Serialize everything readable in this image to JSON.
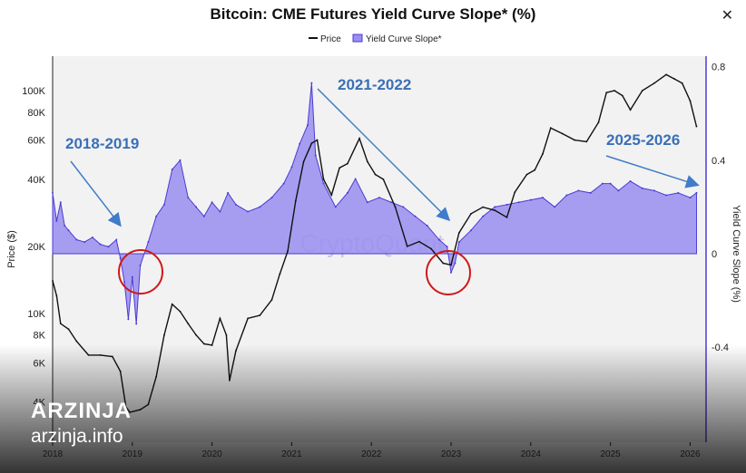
{
  "window": {
    "close_glyph": "✕"
  },
  "colors": {
    "price": "#111111",
    "slope_fill": "#9a8ef0",
    "slope_line": "#4b3bd4",
    "arrow": "#3f7cc9",
    "annotation_text": "#3a6fb8",
    "circle": "#d01818",
    "plot_bg": "#f2f2f2"
  },
  "watermark": {
    "brand": "ARZINJA",
    "url": "arzinja.info",
    "center_text": "CryptoQuant"
  },
  "chart_data": {
    "type": "line",
    "title": "Bitcoin: CME Futures Yield Curve Slope* (%)",
    "legend": [
      {
        "name": "Price",
        "style": "line"
      },
      {
        "name": "Yield Curve Slope*",
        "style": "area"
      }
    ],
    "legend_position": "top-center",
    "x_ticks": [
      "2018",
      "2019",
      "2020",
      "2021",
      "2022",
      "2023",
      "2024",
      "2025",
      "2026"
    ],
    "y_left": {
      "label": "Price ($)",
      "scale": "log",
      "ticks": [
        {
          "v": 4000,
          "t": "4K"
        },
        {
          "v": 6000,
          "t": "6K"
        },
        {
          "v": 8000,
          "t": "8K"
        },
        {
          "v": 10000,
          "t": "10K"
        },
        {
          "v": 20000,
          "t": "20K"
        },
        {
          "v": 40000,
          "t": "40K"
        },
        {
          "v": 60000,
          "t": "60K"
        },
        {
          "v": 80000,
          "t": "80K"
        },
        {
          "v": 100000,
          "t": "100K"
        }
      ]
    },
    "y_right": {
      "label": "Yield Curve Slope (%)",
      "ticks": [
        {
          "v": 0.8,
          "t": "0.8"
        },
        {
          "v": 0.4,
          "t": "0.4"
        },
        {
          "v": 0,
          "t": "0"
        },
        {
          "v": -0.4,
          "t": "-0.4"
        }
      ]
    },
    "series": [
      {
        "name": "Price",
        "x": [
          2018.0,
          2018.05,
          2018.1,
          2018.2,
          2018.3,
          2018.45,
          2018.6,
          2018.75,
          2018.85,
          2018.92,
          2018.97,
          2019.1,
          2019.2,
          2019.3,
          2019.4,
          2019.5,
          2019.6,
          2019.7,
          2019.8,
          2019.9,
          2020.0,
          2020.1,
          2020.18,
          2020.22,
          2020.3,
          2020.45,
          2020.6,
          2020.75,
          2020.85,
          2020.95,
          2021.05,
          2021.15,
          2021.25,
          2021.32,
          2021.4,
          2021.5,
          2021.6,
          2021.7,
          2021.85,
          2021.95,
          2022.05,
          2022.15,
          2022.3,
          2022.45,
          2022.6,
          2022.75,
          2022.9,
          2023.0,
          2023.1,
          2023.25,
          2023.4,
          2023.55,
          2023.7,
          2023.8,
          2023.95,
          2024.05,
          2024.15,
          2024.25,
          2024.4,
          2024.55,
          2024.7,
          2024.85,
          2024.95,
          2025.05,
          2025.15,
          2025.25,
          2025.4,
          2025.55,
          2025.7,
          2025.8,
          2025.9,
          2026.0,
          2026.08
        ],
        "values": [
          14000,
          12000,
          9000,
          8500,
          7500,
          6500,
          6500,
          6400,
          5500,
          3800,
          3600,
          3700,
          3900,
          5200,
          8000,
          11000,
          10200,
          9000,
          8000,
          7300,
          7200,
          9500,
          8000,
          5000,
          6800,
          9500,
          9800,
          11500,
          15000,
          19000,
          32000,
          48000,
          58000,
          60000,
          40000,
          34000,
          45000,
          47000,
          61000,
          48000,
          42000,
          40000,
          30000,
          20000,
          21000,
          19500,
          16800,
          16500,
          23000,
          28000,
          30000,
          29000,
          27000,
          35000,
          42000,
          44000,
          52000,
          68000,
          64000,
          60000,
          59000,
          72000,
          98000,
          100000,
          95000,
          82000,
          100000,
          108000,
          118000,
          113000,
          108000,
          90000,
          69000
        ],
        "slope_values_ref": null
      },
      {
        "name": "Yield Curve Slope*",
        "x": [
          2018.0,
          2018.05,
          2018.1,
          2018.15,
          2018.2,
          2018.3,
          2018.4,
          2018.5,
          2018.6,
          2018.7,
          2018.8,
          2018.85,
          2018.9,
          2018.95,
          2019.0,
          2019.05,
          2019.1,
          2019.2,
          2019.3,
          2019.4,
          2019.5,
          2019.6,
          2019.7,
          2019.8,
          2019.9,
          2020.0,
          2020.1,
          2020.2,
          2020.3,
          2020.45,
          2020.6,
          2020.75,
          2020.9,
          2021.0,
          2021.1,
          2021.2,
          2021.25,
          2021.3,
          2021.4,
          2021.55,
          2021.7,
          2021.8,
          2021.95,
          2022.1,
          2022.25,
          2022.4,
          2022.55,
          2022.7,
          2022.85,
          2022.95,
          2023.0,
          2023.05,
          2023.1,
          2023.25,
          2023.4,
          2023.55,
          2023.7,
          2023.85,
          2024.0,
          2024.15,
          2024.3,
          2024.45,
          2024.6,
          2024.75,
          2024.9,
          2025.0,
          2025.1,
          2025.25,
          2025.4,
          2025.55,
          2025.7,
          2025.85,
          2026.0,
          2026.08
        ],
        "values": [
          0.26,
          0.14,
          0.22,
          0.12,
          0.1,
          0.06,
          0.05,
          0.07,
          0.04,
          0.03,
          0.06,
          -0.02,
          -0.12,
          -0.28,
          -0.1,
          -0.3,
          -0.05,
          0.05,
          0.16,
          0.21,
          0.36,
          0.4,
          0.24,
          0.2,
          0.16,
          0.22,
          0.18,
          0.26,
          0.21,
          0.18,
          0.2,
          0.24,
          0.3,
          0.37,
          0.47,
          0.55,
          0.73,
          0.42,
          0.3,
          0.2,
          0.26,
          0.32,
          0.22,
          0.24,
          0.22,
          0.2,
          0.16,
          0.12,
          0.06,
          0.03,
          -0.08,
          -0.04,
          0.05,
          0.1,
          0.16,
          0.2,
          0.21,
          0.22,
          0.23,
          0.24,
          0.2,
          0.25,
          0.27,
          0.26,
          0.3,
          0.3,
          0.27,
          0.31,
          0.28,
          0.27,
          0.25,
          0.26,
          0.24,
          0.26
        ]
      }
    ],
    "annotations": [
      {
        "text": "2018-2019",
        "type": "label"
      },
      {
        "text": "2021-2022",
        "type": "label"
      },
      {
        "text": "2025-2026",
        "type": "label"
      }
    ]
  }
}
